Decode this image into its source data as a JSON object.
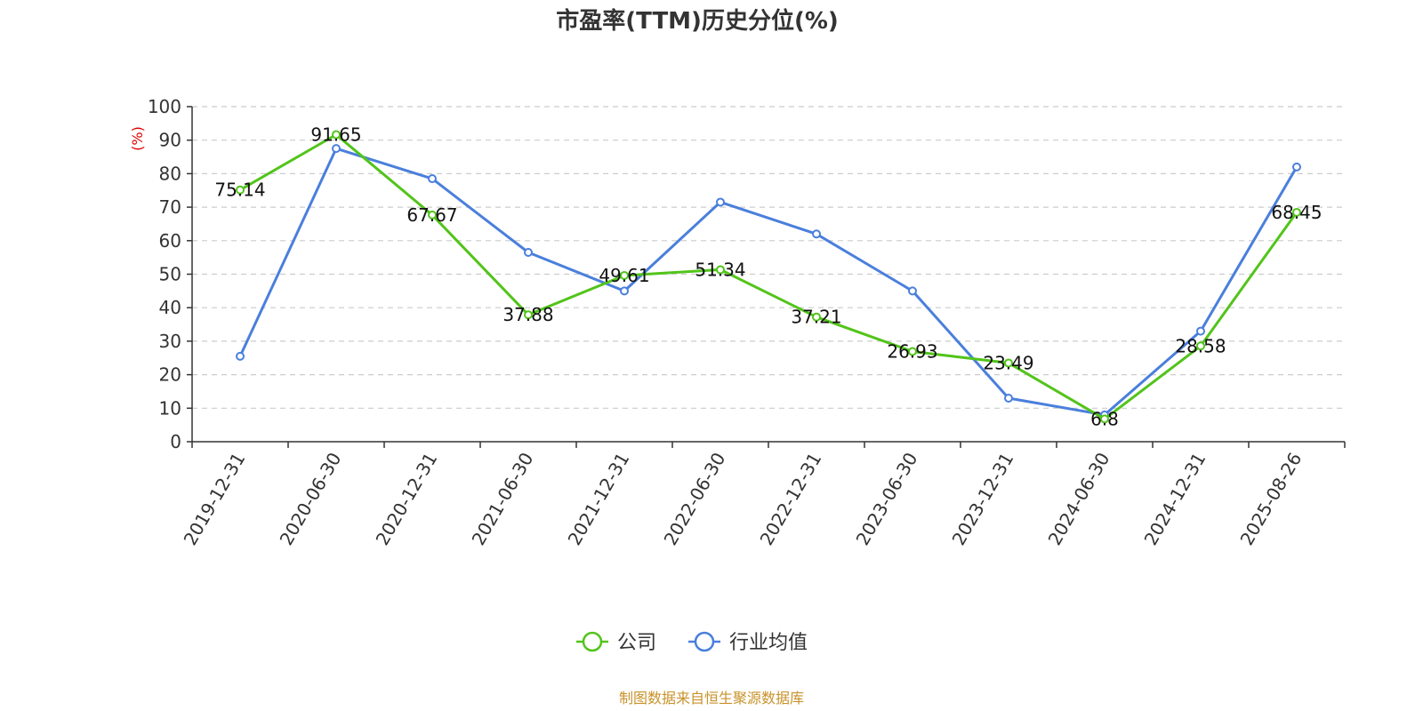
{
  "chart_data": {
    "type": "line",
    "title": "市盈率(TTM)历史分位(%)",
    "ylabel": "(%)",
    "xlabel": "",
    "categories": [
      "2019-12-31",
      "2020-06-30",
      "2020-12-31",
      "2021-06-30",
      "2021-12-31",
      "2022-06-30",
      "2022-12-31",
      "2023-06-30",
      "2023-12-31",
      "2024-06-30",
      "2024-12-31",
      "2025-08-26"
    ],
    "ylim": [
      0,
      100
    ],
    "yticks": [
      0,
      10,
      20,
      30,
      40,
      50,
      60,
      70,
      80,
      90,
      100
    ],
    "grid": true,
    "legend_position": "bottom-center",
    "series": [
      {
        "name": "公司",
        "color": "#52c41a",
        "values": [
          75.14,
          91.65,
          67.67,
          37.88,
          49.61,
          51.34,
          37.21,
          26.93,
          23.49,
          6.8,
          28.58,
          68.45
        ],
        "labels": [
          "75.14",
          "91.65",
          "67.67",
          "37.88",
          "49.61",
          "51.34",
          "37.21",
          "26.93",
          "23.49",
          "6.8",
          "28.58",
          "68.45"
        ]
      },
      {
        "name": "行业均值",
        "color": "#4a7fdc",
        "values": [
          25.5,
          87.5,
          78.5,
          56.5,
          45.0,
          71.5,
          62.0,
          45.0,
          13.0,
          8.0,
          33.0,
          82.0
        ]
      }
    ],
    "source": "制图数据来自恒生聚源数据库"
  }
}
